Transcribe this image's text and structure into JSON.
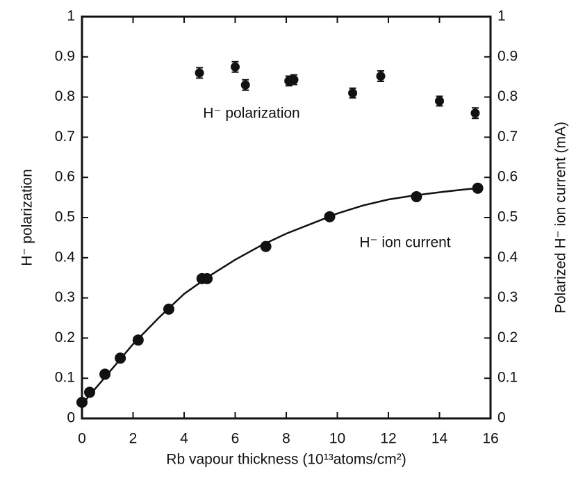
{
  "chart_data": {
    "type": "scatter",
    "xlabel": "Rb vapour thickness (10¹³atoms/cm²)",
    "ylabel": "H⁻ polarization",
    "y2label": "Polarized H⁻ ion current (mA)",
    "xlim": [
      0,
      16
    ],
    "xticks": [
      0,
      2,
      4,
      6,
      8,
      10,
      12,
      14,
      16
    ],
    "ylim": [
      0,
      1
    ],
    "yticks": [
      0,
      0.1,
      0.2,
      0.3,
      0.4,
      0.5,
      0.6,
      0.7,
      0.8,
      0.9,
      1
    ],
    "y2lim": [
      0,
      1
    ],
    "y2ticks": [
      0,
      0.1,
      0.2,
      0.3,
      0.4,
      0.5,
      0.6,
      0.7,
      0.8,
      0.9,
      1
    ],
    "series": [
      {
        "name": "H⁻ polarization",
        "color": "#111111",
        "mode": "markers",
        "x": [
          4.6,
          6.0,
          6.4,
          8.1,
          8.3,
          10.6,
          11.7,
          14.0,
          15.4
        ],
        "values": [
          0.86,
          0.875,
          0.83,
          0.84,
          0.843,
          0.81,
          0.852,
          0.79,
          0.76
        ],
        "errors": [
          0.013,
          0.013,
          0.013,
          0.012,
          0.012,
          0.012,
          0.013,
          0.012,
          0.013
        ]
      },
      {
        "name": "H⁻ ion current",
        "color": "#111111",
        "mode": "markers",
        "axis": "y2",
        "x": [
          0,
          0.3,
          0.9,
          1.5,
          2.2,
          3.4,
          4.7,
          4.9,
          7.2,
          9.7,
          13.1,
          15.5
        ],
        "values": [
          0.04,
          0.065,
          0.11,
          0.15,
          0.195,
          0.272,
          0.348,
          0.348,
          0.428,
          0.502,
          0.552,
          0.573
        ]
      },
      {
        "color": "#111111",
        "mode": "line",
        "axis": "y2",
        "x": [
          0,
          1,
          2,
          3,
          4,
          5,
          6,
          7,
          8,
          9,
          10,
          11,
          12,
          13,
          14,
          15,
          15.5
        ],
        "values": [
          0.035,
          0.11,
          0.185,
          0.25,
          0.31,
          0.355,
          0.395,
          0.43,
          0.46,
          0.485,
          0.51,
          0.53,
          0.545,
          0.555,
          0.563,
          0.57,
          0.573
        ]
      }
    ]
  }
}
